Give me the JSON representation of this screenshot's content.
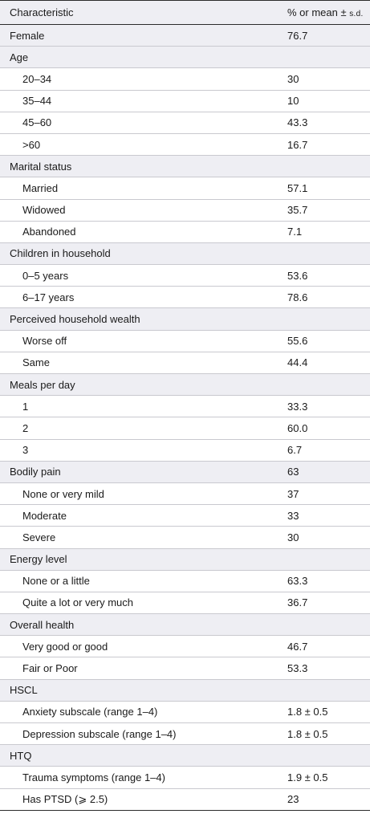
{
  "table": {
    "columns": [
      "Characteristic",
      "% or mean ± ",
      "s.d."
    ],
    "rows": [
      {
        "label": "Female",
        "value": "76.7",
        "type": "sub0"
      },
      {
        "label": "Age",
        "value": "",
        "type": "header"
      },
      {
        "label": "20–34",
        "value": "30",
        "type": "sub"
      },
      {
        "label": "35–44",
        "value": "10",
        "type": "sub"
      },
      {
        "label": "45–60",
        "value": "43.3",
        "type": "sub"
      },
      {
        "label": ">60",
        "value": "16.7",
        "type": "sub"
      },
      {
        "label": "Marital status",
        "value": "",
        "type": "header"
      },
      {
        "label": "Married",
        "value": "57.1",
        "type": "sub"
      },
      {
        "label": "Widowed",
        "value": "35.7",
        "type": "sub"
      },
      {
        "label": "Abandoned",
        "value": "7.1",
        "type": "sub"
      },
      {
        "label": "Children in household",
        "value": "",
        "type": "header"
      },
      {
        "label": "0–5 years",
        "value": "53.6",
        "type": "sub"
      },
      {
        "label": "6–17 years",
        "value": "78.6",
        "type": "sub"
      },
      {
        "label": "Perceived household wealth",
        "value": "",
        "type": "header"
      },
      {
        "label": "Worse off",
        "value": "55.6",
        "type": "sub"
      },
      {
        "label": "Same",
        "value": "44.4",
        "type": "sub"
      },
      {
        "label": "Meals per day",
        "value": "",
        "type": "header"
      },
      {
        "label": "1",
        "value": "33.3",
        "type": "sub"
      },
      {
        "label": "2",
        "value": "60.0",
        "type": "sub"
      },
      {
        "label": "3",
        "value": "6.7",
        "type": "sub"
      },
      {
        "label": "Bodily pain",
        "value": "63",
        "type": "header"
      },
      {
        "label": "None or very mild",
        "value": "37",
        "type": "sub"
      },
      {
        "label": "Moderate",
        "value": "33",
        "type": "sub"
      },
      {
        "label": "Severe",
        "value": "30",
        "type": "sub"
      },
      {
        "label": "Energy level",
        "value": "",
        "type": "header"
      },
      {
        "label": "None or a little",
        "value": "63.3",
        "type": "sub"
      },
      {
        "label": "Quite a lot or very much",
        "value": "36.7",
        "type": "sub"
      },
      {
        "label": "Overall health",
        "value": "",
        "type": "header"
      },
      {
        "label": "Very good or good",
        "value": "46.7",
        "type": "sub"
      },
      {
        "label": "Fair or Poor",
        "value": "53.3",
        "type": "sub"
      },
      {
        "label": "HSCL",
        "value": "",
        "type": "header"
      },
      {
        "label": "Anxiety subscale (range 1–4)",
        "value": "1.8 ± 0.5",
        "type": "sub"
      },
      {
        "label": "Depression subscale (range 1–4)",
        "value": "1.8 ± 0.5",
        "type": "sub"
      },
      {
        "label": "HTQ",
        "value": "",
        "type": "header"
      },
      {
        "label": "Trauma symptoms (range 1–4)",
        "value": "1.9 ± 0.5",
        "type": "sub"
      },
      {
        "label": "Has PTSD (⩾ 2.5)",
        "value": "23",
        "type": "sub"
      }
    ]
  }
}
